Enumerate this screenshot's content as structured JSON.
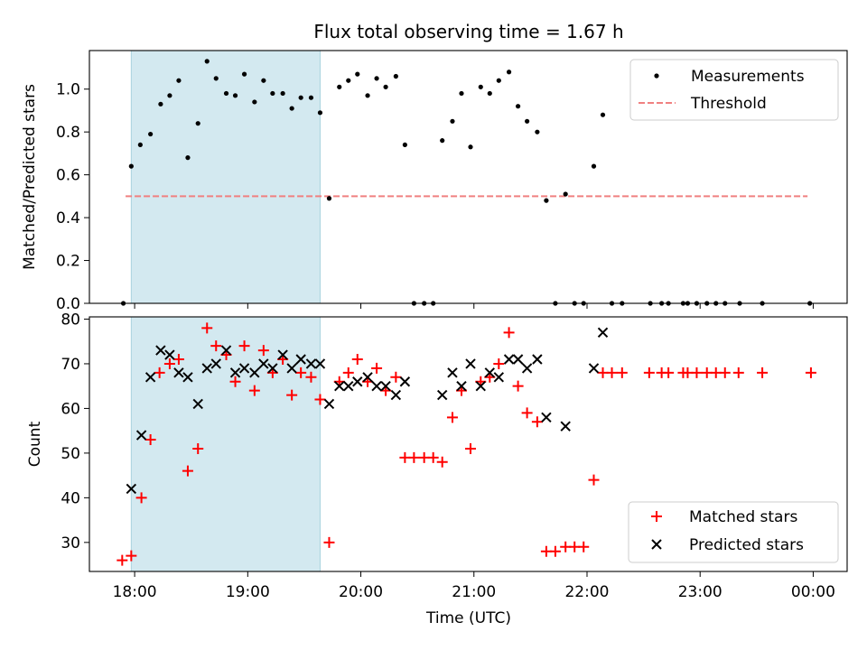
{
  "chart_data": [
    {
      "type": "scatter",
      "title": "Flux total observing time = 1.67 h",
      "xlabel": "",
      "ylabel": "Matched/Predicted stars",
      "ylim": [
        0.0,
        1.18
      ],
      "yticks": [
        0.0,
        0.2,
        0.4,
        0.6,
        0.8,
        1.0
      ],
      "xlim": [
        17.6,
        24.3
      ],
      "shaded_span": [
        17.97,
        19.64
      ],
      "shaded_color": "#d3e9f0",
      "threshold": {
        "name": "Threshold",
        "value": 0.5,
        "x_range": [
          17.92,
          23.95
        ],
        "color": "#f08080",
        "style": "dashed"
      },
      "series": [
        {
          "name": "Measurements",
          "color": "#000000",
          "marker": "dot",
          "points": [
            [
              17.9,
              0.0
            ],
            [
              17.97,
              0.64
            ],
            [
              18.05,
              0.74
            ],
            [
              18.14,
              0.79
            ],
            [
              18.23,
              0.93
            ],
            [
              18.31,
              0.97
            ],
            [
              18.39,
              1.04
            ],
            [
              18.47,
              0.68
            ],
            [
              18.56,
              0.84
            ],
            [
              18.64,
              1.13
            ],
            [
              18.72,
              1.05
            ],
            [
              18.81,
              0.98
            ],
            [
              18.89,
              0.97
            ],
            [
              18.97,
              1.07
            ],
            [
              19.06,
              0.94
            ],
            [
              19.14,
              1.04
            ],
            [
              19.22,
              0.98
            ],
            [
              19.31,
              0.98
            ],
            [
              19.39,
              0.91
            ],
            [
              19.47,
              0.96
            ],
            [
              19.56,
              0.96
            ],
            [
              19.64,
              0.89
            ],
            [
              19.72,
              0.49
            ],
            [
              19.81,
              1.01
            ],
            [
              19.89,
              1.04
            ],
            [
              19.97,
              1.07
            ],
            [
              20.06,
              0.97
            ],
            [
              20.14,
              1.05
            ],
            [
              20.22,
              1.01
            ],
            [
              20.31,
              1.06
            ],
            [
              20.39,
              0.74
            ],
            [
              20.47,
              0.0
            ],
            [
              20.56,
              0.0
            ],
            [
              20.64,
              0.0
            ],
            [
              20.72,
              0.76
            ],
            [
              20.81,
              0.85
            ],
            [
              20.89,
              0.98
            ],
            [
              20.97,
              0.73
            ],
            [
              21.06,
              1.01
            ],
            [
              21.14,
              0.98
            ],
            [
              21.22,
              1.04
            ],
            [
              21.31,
              1.08
            ],
            [
              21.39,
              0.92
            ],
            [
              21.47,
              0.85
            ],
            [
              21.56,
              0.8
            ],
            [
              21.64,
              0.48
            ],
            [
              21.72,
              0.0
            ],
            [
              21.81,
              0.51
            ],
            [
              21.89,
              0.0
            ],
            [
              21.97,
              0.0
            ],
            [
              22.06,
              0.64
            ],
            [
              22.14,
              0.88
            ],
            [
              22.22,
              0.0
            ],
            [
              22.31,
              0.0
            ],
            [
              22.56,
              0.0
            ],
            [
              22.66,
              0.0
            ],
            [
              22.72,
              0.0
            ],
            [
              22.85,
              0.0
            ],
            [
              22.89,
              0.0
            ],
            [
              22.97,
              0.0
            ],
            [
              23.06,
              0.0
            ],
            [
              23.14,
              0.0
            ],
            [
              23.22,
              0.0
            ],
            [
              23.35,
              0.0
            ],
            [
              23.55,
              0.0
            ],
            [
              23.97,
              0.0
            ]
          ]
        }
      ],
      "legend": {
        "position": "top-right",
        "entries": [
          "Measurements",
          "Threshold"
        ]
      }
    },
    {
      "type": "scatter",
      "title": "",
      "xlabel": "Time (UTC)",
      "ylabel": "Count",
      "ylim": [
        23.5,
        80.5
      ],
      "yticks": [
        30,
        40,
        50,
        60,
        70,
        80
      ],
      "xlim": [
        17.6,
        24.3
      ],
      "xticks": [
        {
          "value": 18,
          "label": "18:00"
        },
        {
          "value": 19,
          "label": "19:00"
        },
        {
          "value": 20,
          "label": "20:00"
        },
        {
          "value": 21,
          "label": "21:00"
        },
        {
          "value": 22,
          "label": "22:00"
        },
        {
          "value": 23,
          "label": "23:00"
        },
        {
          "value": 24,
          "label": "00:00"
        }
      ],
      "shaded_span": [
        17.97,
        19.64
      ],
      "shaded_color": "#d3e9f0",
      "series": [
        {
          "name": "Matched stars",
          "color": "#ff0000",
          "marker": "plus",
          "points": [
            [
              17.89,
              26
            ],
            [
              17.97,
              27
            ],
            [
              18.06,
              40
            ],
            [
              18.14,
              53
            ],
            [
              18.22,
              68
            ],
            [
              18.31,
              70
            ],
            [
              18.39,
              71
            ],
            [
              18.47,
              46
            ],
            [
              18.56,
              51
            ],
            [
              18.64,
              78
            ],
            [
              18.72,
              74
            ],
            [
              18.81,
              72
            ],
            [
              18.89,
              66
            ],
            [
              18.97,
              74
            ],
            [
              19.06,
              64
            ],
            [
              19.14,
              73
            ],
            [
              19.22,
              68
            ],
            [
              19.31,
              71
            ],
            [
              19.39,
              63
            ],
            [
              19.47,
              68
            ],
            [
              19.56,
              67
            ],
            [
              19.64,
              62
            ],
            [
              19.72,
              30
            ],
            [
              19.81,
              66
            ],
            [
              19.89,
              68
            ],
            [
              19.97,
              71
            ],
            [
              20.06,
              66
            ],
            [
              20.14,
              69
            ],
            [
              20.22,
              64
            ],
            [
              20.31,
              67
            ],
            [
              20.39,
              49
            ],
            [
              20.47,
              49
            ],
            [
              20.56,
              49
            ],
            [
              20.64,
              49
            ],
            [
              20.72,
              48
            ],
            [
              20.81,
              58
            ],
            [
              20.89,
              64
            ],
            [
              20.97,
              51
            ],
            [
              21.06,
              66
            ],
            [
              21.14,
              67
            ],
            [
              21.22,
              70
            ],
            [
              21.31,
              77
            ],
            [
              21.39,
              65
            ],
            [
              21.47,
              59
            ],
            [
              21.56,
              57
            ],
            [
              21.64,
              28
            ],
            [
              21.72,
              28
            ],
            [
              21.81,
              29
            ],
            [
              21.89,
              29
            ],
            [
              21.97,
              29
            ],
            [
              22.06,
              44
            ],
            [
              22.14,
              68
            ],
            [
              22.22,
              68
            ],
            [
              22.31,
              68
            ],
            [
              22.55,
              68
            ],
            [
              22.66,
              68
            ],
            [
              22.72,
              68
            ],
            [
              22.85,
              68
            ],
            [
              22.89,
              68
            ],
            [
              22.97,
              68
            ],
            [
              23.06,
              68
            ],
            [
              23.14,
              68
            ],
            [
              23.22,
              68
            ],
            [
              23.34,
              68
            ],
            [
              23.55,
              68
            ],
            [
              23.98,
              68
            ]
          ]
        },
        {
          "name": "Predicted stars",
          "color": "#000000",
          "marker": "x",
          "points": [
            [
              17.97,
              42
            ],
            [
              18.06,
              54
            ],
            [
              18.14,
              67
            ],
            [
              18.23,
              73
            ],
            [
              18.31,
              72
            ],
            [
              18.39,
              68
            ],
            [
              18.47,
              67
            ],
            [
              18.56,
              61
            ],
            [
              18.64,
              69
            ],
            [
              18.72,
              70
            ],
            [
              18.81,
              73
            ],
            [
              18.89,
              68
            ],
            [
              18.97,
              69
            ],
            [
              19.06,
              68
            ],
            [
              19.14,
              70
            ],
            [
              19.22,
              69
            ],
            [
              19.31,
              72
            ],
            [
              19.39,
              69
            ],
            [
              19.47,
              71
            ],
            [
              19.56,
              70
            ],
            [
              19.64,
              70
            ],
            [
              19.72,
              61
            ],
            [
              19.81,
              65
            ],
            [
              19.89,
              65
            ],
            [
              19.97,
              66
            ],
            [
              20.06,
              67
            ],
            [
              20.14,
              65
            ],
            [
              20.22,
              65
            ],
            [
              20.31,
              63
            ],
            [
              20.39,
              66
            ],
            [
              20.72,
              63
            ],
            [
              20.81,
              68
            ],
            [
              20.89,
              65
            ],
            [
              20.97,
              70
            ],
            [
              21.06,
              65
            ],
            [
              21.14,
              68
            ],
            [
              21.22,
              67
            ],
            [
              21.31,
              71
            ],
            [
              21.39,
              71
            ],
            [
              21.47,
              69
            ],
            [
              21.56,
              71
            ],
            [
              21.64,
              58
            ],
            [
              21.81,
              56
            ],
            [
              22.06,
              69
            ],
            [
              22.14,
              77
            ]
          ]
        }
      ],
      "legend": {
        "position": "bottom-right",
        "entries": [
          "Matched stars",
          "Predicted stars"
        ]
      }
    }
  ]
}
